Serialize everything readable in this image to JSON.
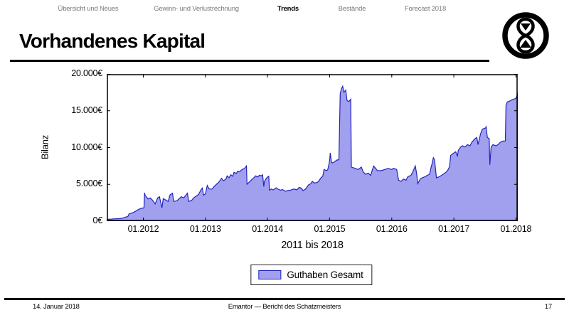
{
  "nav": {
    "items": [
      {
        "label": "Übersicht und Neues",
        "active": false
      },
      {
        "label": "Gewinn- und Verlustrechnung",
        "active": false
      },
      {
        "label": "Trends",
        "active": true
      },
      {
        "label": "Bestände",
        "active": false
      },
      {
        "label": "Forecast 2018",
        "active": false
      }
    ]
  },
  "title": "Vorhandenes Kapital",
  "footer": {
    "date": "14. Januar 2018",
    "center": "Emantor — Bericht des Schatzmeisters",
    "page": "17"
  },
  "icons": {
    "logo": "hourglass-logo-icon"
  },
  "chart_data": {
    "type": "area",
    "title": "",
    "xlabel": "2011 bis 2018",
    "ylabel": "Bilanz",
    "xlim": [
      2011.41,
      2018.03
    ],
    "ylim": [
      0,
      20000
    ],
    "grid": false,
    "xticks": {
      "values": [
        2012,
        2013,
        2014,
        2015,
        2016,
        2017,
        2018
      ],
      "labels": [
        "01.2012",
        "01.2013",
        "01.2014",
        "01.2015",
        "01.2016",
        "01.2017",
        "01.2018"
      ]
    },
    "yticks": {
      "values": [
        0,
        5000,
        10000,
        15000,
        20000
      ],
      "labels": [
        "0€",
        "5.000€",
        "10.000€",
        "15.000€",
        "20.000€"
      ]
    },
    "legend": {
      "position": "below",
      "entries": [
        "Guthaben Gesamt"
      ]
    },
    "series": [
      {
        "name": "Guthaben Gesamt",
        "fill": "#a0a0ee",
        "stroke": "#2323c0",
        "points": [
          [
            2011.41,
            250
          ],
          [
            2011.49,
            280
          ],
          [
            2011.54,
            320
          ],
          [
            2011.6,
            340
          ],
          [
            2011.66,
            400
          ],
          [
            2011.71,
            550
          ],
          [
            2011.75,
            620
          ],
          [
            2011.77,
            1000
          ],
          [
            2011.81,
            1100
          ],
          [
            2011.84,
            1180
          ],
          [
            2011.89,
            1420
          ],
          [
            2011.93,
            1620
          ],
          [
            2011.98,
            1780
          ],
          [
            2012.01,
            1800
          ],
          [
            2012.02,
            3860
          ],
          [
            2012.03,
            3480
          ],
          [
            2012.08,
            3000
          ],
          [
            2012.11,
            3160
          ],
          [
            2012.15,
            2840
          ],
          [
            2012.19,
            2350
          ],
          [
            2012.23,
            3160
          ],
          [
            2012.26,
            3320
          ],
          [
            2012.3,
            1800
          ],
          [
            2012.32,
            3060
          ],
          [
            2012.37,
            2840
          ],
          [
            2012.4,
            2680
          ],
          [
            2012.43,
            3580
          ],
          [
            2012.47,
            3800
          ],
          [
            2012.49,
            2680
          ],
          [
            2012.54,
            2770
          ],
          [
            2012.57,
            3000
          ],
          [
            2012.61,
            3320
          ],
          [
            2012.65,
            3160
          ],
          [
            2012.69,
            3580
          ],
          [
            2012.71,
            3800
          ],
          [
            2012.73,
            2680
          ],
          [
            2012.78,
            2840
          ],
          [
            2012.81,
            3160
          ],
          [
            2012.85,
            3390
          ],
          [
            2012.89,
            3640
          ],
          [
            2012.93,
            4280
          ],
          [
            2012.95,
            4500
          ],
          [
            2012.97,
            3550
          ],
          [
            2013.0,
            3700
          ],
          [
            2013.03,
            4850
          ],
          [
            2013.06,
            4370
          ],
          [
            2013.11,
            4370
          ],
          [
            2013.14,
            4700
          ],
          [
            2013.18,
            5020
          ],
          [
            2013.21,
            5250
          ],
          [
            2013.26,
            5830
          ],
          [
            2013.29,
            5500
          ],
          [
            2013.33,
            5700
          ],
          [
            2013.35,
            6150
          ],
          [
            2013.38,
            5900
          ],
          [
            2013.41,
            6310
          ],
          [
            2013.44,
            6100
          ],
          [
            2013.46,
            6630
          ],
          [
            2013.5,
            6500
          ],
          [
            2013.52,
            6800
          ],
          [
            2013.55,
            6700
          ],
          [
            2013.58,
            6960
          ],
          [
            2013.61,
            7100
          ],
          [
            2013.63,
            7180
          ],
          [
            2013.66,
            7500
          ],
          [
            2013.67,
            5020
          ],
          [
            2013.71,
            5340
          ],
          [
            2013.75,
            5670
          ],
          [
            2013.78,
            5900
          ],
          [
            2013.81,
            6150
          ],
          [
            2013.84,
            6000
          ],
          [
            2013.87,
            6250
          ],
          [
            2013.9,
            6150
          ],
          [
            2013.92,
            6310
          ],
          [
            2013.94,
            4700
          ],
          [
            2013.95,
            5400
          ],
          [
            2013.98,
            5830
          ],
          [
            2014.0,
            5990
          ],
          [
            2014.02,
            6100
          ],
          [
            2014.03,
            4210
          ],
          [
            2014.06,
            4370
          ],
          [
            2014.09,
            4250
          ],
          [
            2014.14,
            4530
          ],
          [
            2014.17,
            4350
          ],
          [
            2014.21,
            4210
          ],
          [
            2014.24,
            4300
          ],
          [
            2014.29,
            4050
          ],
          [
            2014.32,
            4150
          ],
          [
            2014.37,
            4210
          ],
          [
            2014.4,
            4300
          ],
          [
            2014.43,
            4370
          ],
          [
            2014.47,
            4250
          ],
          [
            2014.51,
            4600
          ],
          [
            2014.55,
            4450
          ],
          [
            2014.57,
            4150
          ],
          [
            2014.61,
            4350
          ],
          [
            2014.66,
            4930
          ],
          [
            2014.7,
            5100
          ],
          [
            2014.72,
            5410
          ],
          [
            2014.75,
            5200
          ],
          [
            2014.8,
            5250
          ],
          [
            2014.83,
            5500
          ],
          [
            2014.86,
            5890
          ],
          [
            2014.89,
            6100
          ],
          [
            2014.91,
            7020
          ],
          [
            2014.95,
            6860
          ],
          [
            2014.97,
            7000
          ],
          [
            2015.0,
            8150
          ],
          [
            2015.01,
            9280
          ],
          [
            2015.03,
            8000
          ],
          [
            2015.05,
            7900
          ],
          [
            2015.09,
            8150
          ],
          [
            2015.12,
            8310
          ],
          [
            2015.15,
            8350
          ],
          [
            2015.17,
            17300
          ],
          [
            2015.19,
            18000
          ],
          [
            2015.21,
            18330
          ],
          [
            2015.23,
            17530
          ],
          [
            2015.26,
            17800
          ],
          [
            2015.28,
            16400
          ],
          [
            2015.31,
            16250
          ],
          [
            2015.34,
            16560
          ],
          [
            2015.35,
            7340
          ],
          [
            2015.41,
            7180
          ],
          [
            2015.46,
            7020
          ],
          [
            2015.51,
            7340
          ],
          [
            2015.54,
            6700
          ],
          [
            2015.58,
            6370
          ],
          [
            2015.62,
            6540
          ],
          [
            2015.66,
            6210
          ],
          [
            2015.69,
            7020
          ],
          [
            2015.71,
            7500
          ],
          [
            2015.74,
            7180
          ],
          [
            2015.77,
            6860
          ],
          [
            2015.83,
            6860
          ],
          [
            2015.89,
            7020
          ],
          [
            2015.94,
            7180
          ],
          [
            2016.0,
            7020
          ],
          [
            2016.03,
            7180
          ],
          [
            2016.08,
            7020
          ],
          [
            2016.11,
            5570
          ],
          [
            2016.15,
            5410
          ],
          [
            2016.19,
            5730
          ],
          [
            2016.23,
            5570
          ],
          [
            2016.26,
            6050
          ],
          [
            2016.31,
            6210
          ],
          [
            2016.34,
            6700
          ],
          [
            2016.38,
            7500
          ],
          [
            2016.4,
            6500
          ],
          [
            2016.42,
            5090
          ],
          [
            2016.46,
            5730
          ],
          [
            2016.49,
            5890
          ],
          [
            2016.54,
            6050
          ],
          [
            2016.57,
            6220
          ],
          [
            2016.61,
            6380
          ],
          [
            2016.63,
            7200
          ],
          [
            2016.65,
            7830
          ],
          [
            2016.67,
            8630
          ],
          [
            2016.69,
            8310
          ],
          [
            2016.72,
            5890
          ],
          [
            2016.77,
            6050
          ],
          [
            2016.8,
            6220
          ],
          [
            2016.83,
            6380
          ],
          [
            2016.88,
            6700
          ],
          [
            2016.91,
            7020
          ],
          [
            2016.93,
            7400
          ],
          [
            2016.95,
            8950
          ],
          [
            2017.0,
            9270
          ],
          [
            2017.03,
            9430
          ],
          [
            2017.06,
            8790
          ],
          [
            2017.07,
            9590
          ],
          [
            2017.11,
            10080
          ],
          [
            2017.14,
            10240
          ],
          [
            2017.18,
            10080
          ],
          [
            2017.22,
            10400
          ],
          [
            2017.26,
            10240
          ],
          [
            2017.29,
            10720
          ],
          [
            2017.34,
            11200
          ],
          [
            2017.37,
            11370
          ],
          [
            2017.39,
            10400
          ],
          [
            2017.43,
            11850
          ],
          [
            2017.46,
            12500
          ],
          [
            2017.51,
            12660
          ],
          [
            2017.52,
            12820
          ],
          [
            2017.54,
            11370
          ],
          [
            2017.57,
            11200
          ],
          [
            2017.58,
            7660
          ],
          [
            2017.6,
            10080
          ],
          [
            2017.63,
            10400
          ],
          [
            2017.68,
            10240
          ],
          [
            2017.71,
            10400
          ],
          [
            2017.75,
            10720
          ],
          [
            2017.79,
            10880
          ],
          [
            2017.83,
            10900
          ],
          [
            2017.84,
            15710
          ],
          [
            2017.86,
            16200
          ],
          [
            2017.91,
            16360
          ],
          [
            2017.94,
            16520
          ],
          [
            2018.0,
            16680
          ],
          [
            2018.02,
            17160
          ],
          [
            2018.03,
            17490
          ]
        ]
      }
    ]
  }
}
